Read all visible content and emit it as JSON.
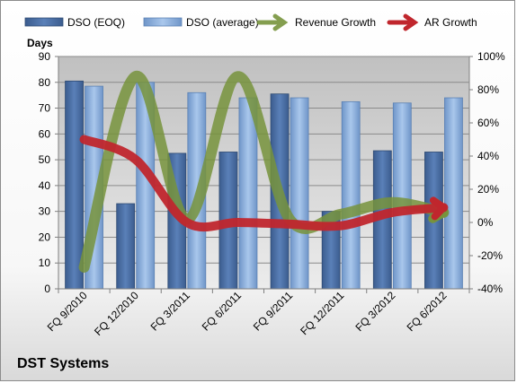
{
  "chart_data": {
    "type": "bar",
    "title": "",
    "company_label": "DST Systems",
    "ylabel": "Days",
    "y2label": "",
    "ylim": [
      0,
      90
    ],
    "y_ticks": [
      0,
      10,
      20,
      30,
      40,
      50,
      60,
      70,
      80,
      90
    ],
    "y2lim": [
      -40,
      100
    ],
    "y2_ticks": [
      "-40%",
      "-20%",
      "0%",
      "20%",
      "40%",
      "60%",
      "80%",
      "100%"
    ],
    "y2_tick_values": [
      -40,
      -20,
      0,
      20,
      40,
      60,
      80,
      100
    ],
    "categories": [
      "FQ 9/2010",
      "FQ 12/2010",
      "FQ 3/2011",
      "FQ 6/2011",
      "FQ 9/2011",
      "FQ 12/2011",
      "FQ 3/2012",
      "FQ 6/2012"
    ],
    "legend_position": "top",
    "grid": true,
    "series": [
      {
        "name": "DSO (EOQ)",
        "type": "bar",
        "axis": "left",
        "color": "#4a6fa5",
        "values": [
          80.5,
          33,
          52.5,
          53,
          75.5,
          30,
          53.5,
          53
        ]
      },
      {
        "name": "DSO (average)",
        "type": "bar",
        "axis": "left",
        "color": "#8db4e2",
        "values": [
          78.5,
          80,
          76,
          74,
          74,
          72.5,
          72,
          74
        ]
      },
      {
        "name": "Revenue Growth",
        "type": "line",
        "axis": "right",
        "color": "#77933c",
        "values": [
          -27,
          88,
          2,
          88,
          2,
          5,
          12,
          6
        ]
      },
      {
        "name": "AR Growth",
        "type": "line",
        "axis": "right",
        "color": "#c0262d",
        "values": [
          50,
          38,
          0,
          0,
          -1,
          -2,
          6,
          9
        ]
      }
    ]
  }
}
